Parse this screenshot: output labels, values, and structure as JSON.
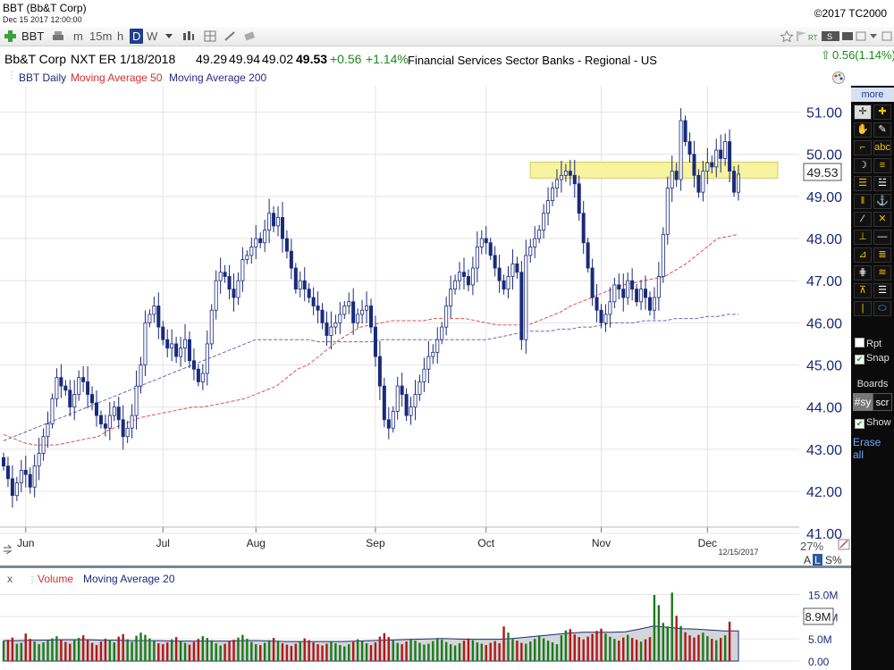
{
  "window": {
    "title": "BBT (Bb&T Corp)",
    "date": "Dec 15 2017 12:00:00",
    "copyright": "©2017 TC2000"
  },
  "toolbar": {
    "symbol": "BBT",
    "periods": [
      "m",
      "15m",
      "h",
      "D",
      "W"
    ],
    "selected_period": "D",
    "right_change": "0.56(1.14%)"
  },
  "quote": {
    "name": "Bb&T Corp",
    "earnings": "NXT ER 1/18/2018",
    "open": "49.29",
    "high": "49.94",
    "low": "49.02",
    "last": "49.53",
    "change": "+0.56",
    "change_pct": "+1.14%",
    "sector": "Financial Services Sector  Banks - Regional - US"
  },
  "price_legend": {
    "main": "BBT Daily",
    "ma50": "Moving Average 50",
    "ma200": "Moving Average 200"
  },
  "volume_legend": {
    "close": "x",
    "main": "Volume",
    "ma20": "Moving Average 20"
  },
  "colors": {
    "up_candle": "#ffffff",
    "down_candle": "#1a2a7a",
    "ma50": "#e05050",
    "ma200": "#6a6ab4",
    "volume_up": "#1a7a1a",
    "volume_down": "#b01818",
    "highlight": "#f7f4a0",
    "axis_text": "#1a2a7a"
  },
  "chart_data": [
    {
      "type": "candlestick",
      "title": "BBT Daily",
      "x_ticks": [
        "Jun",
        "Jul",
        "Aug",
        "Sep",
        "Oct",
        "Nov",
        "Dec"
      ],
      "y_ticks": [
        "41.00",
        "42.00",
        "43.00",
        "44.00",
        "45.00",
        "46.00",
        "47.00",
        "48.00",
        "49.00",
        "50.00",
        "51.00"
      ],
      "ylim": [
        40.6,
        51.5
      ],
      "last_price_label": "49.53",
      "date_label": "12/15/2017",
      "pct_label": "27%",
      "scale_options": [
        "A",
        "L",
        "S%"
      ],
      "selected_scale": "L",
      "highlight_zone": [
        49.5,
        49.75
      ],
      "close": [
        42.6,
        42.3,
        41.9,
        42.2,
        42.5,
        42.4,
        42.1,
        42.6,
        42.9,
        43.3,
        43.6,
        44.2,
        44.7,
        44.5,
        44.4,
        44.0,
        44.3,
        44.7,
        44.6,
        44.3,
        44.1,
        43.8,
        43.6,
        43.5,
        43.8,
        44.0,
        43.7,
        43.3,
        43.5,
        43.8,
        44.5,
        45.0,
        46.0,
        46.2,
        46.4,
        45.9,
        45.6,
        45.4,
        45.5,
        45.2,
        45.4,
        45.6,
        45.1,
        44.9,
        44.6,
        44.8,
        45.5,
        46.3,
        47.0,
        47.2,
        47.1,
        46.8,
        46.6,
        47.0,
        47.5,
        47.6,
        47.8,
        48.0,
        47.9,
        48.2,
        48.6,
        48.3,
        48.5,
        48.0,
        47.7,
        47.3,
        46.8,
        47.0,
        46.8,
        46.6,
        46.4,
        46.3,
        46.0,
        45.7,
        45.9,
        46.0,
        46.2,
        46.4,
        46.5,
        46.0,
        46.2,
        46.3,
        46.4,
        45.9,
        45.2,
        44.5,
        43.7,
        43.5,
        43.9,
        44.5,
        44.3,
        43.8,
        44.0,
        44.3,
        44.6,
        44.9,
        45.2,
        45.3,
        45.6,
        45.9,
        46.4,
        46.8,
        47.0,
        47.2,
        47.1,
        46.9,
        47.3,
        47.8,
        48.0,
        47.9,
        47.6,
        47.3,
        47.0,
        46.8,
        47.1,
        47.4,
        47.2,
        45.6,
        47.6,
        47.8,
        48.0,
        48.2,
        48.6,
        48.9,
        49.2,
        49.4,
        49.5,
        49.6,
        49.5,
        49.3,
        48.6,
        47.9,
        47.3,
        46.6,
        46.3,
        46.0,
        46.2,
        46.5,
        46.9,
        46.8,
        46.6,
        47.0,
        46.8,
        46.5,
        46.8,
        46.6,
        46.3,
        46.6,
        47.1,
        48.1,
        49.2,
        49.6,
        49.4,
        50.8,
        50.3,
        50.0,
        49.5,
        49.1,
        49.6,
        49.8,
        49.7,
        50.1,
        49.9,
        50.3,
        49.6,
        49.1,
        49.53
      ],
      "ma50": [
        43.35,
        43.25,
        43.15,
        43.1,
        43.1,
        43.1,
        43.15,
        43.2,
        43.25,
        43.3,
        43.45,
        43.55,
        43.65,
        43.75,
        43.8,
        43.85,
        43.9,
        43.95,
        44.0,
        44.0,
        44.05,
        44.1,
        44.15,
        44.2,
        44.3,
        44.4,
        44.5,
        44.7,
        44.9,
        45.0,
        45.2,
        45.4,
        45.6,
        45.75,
        45.9,
        45.95,
        46.0,
        46.05,
        46.05,
        46.05,
        46.05,
        46.1,
        46.1,
        46.1,
        46.1,
        46.05,
        46.0,
        45.95,
        45.95,
        45.95,
        45.95,
        46.05,
        46.15,
        46.25,
        46.4,
        46.5,
        46.6,
        46.7,
        46.8,
        46.9,
        46.95,
        47.0,
        47.05,
        47.1,
        47.25,
        47.4,
        47.6,
        47.8,
        48.0,
        48.05,
        48.1
      ],
      "ma200": [
        43.2,
        43.3,
        43.4,
        43.5,
        43.6,
        43.7,
        43.8,
        43.9,
        44.0,
        44.1,
        44.2,
        44.3,
        44.4,
        44.5,
        44.6,
        44.7,
        44.8,
        44.9,
        45.0,
        45.1,
        45.2,
        45.3,
        45.4,
        45.5,
        45.6,
        45.6,
        45.6,
        45.6,
        45.6,
        45.6,
        45.55,
        45.55,
        45.55,
        45.55,
        45.55,
        45.55,
        45.6,
        45.6,
        45.6,
        45.6,
        45.6,
        45.6,
        45.6,
        45.6,
        45.6,
        45.6,
        45.6,
        45.65,
        45.7,
        45.75,
        45.8,
        45.8,
        45.8,
        45.85,
        45.85,
        45.9,
        45.9,
        45.95,
        46.0,
        46.0,
        46.0,
        46.05,
        46.05,
        46.05,
        46.1,
        46.1,
        46.1,
        46.15,
        46.15,
        46.2,
        46.2
      ]
    },
    {
      "type": "bar",
      "title": "Volume",
      "y_ticks": [
        "0.00",
        "5.0M",
        "10.0M",
        "15.0M"
      ],
      "ylim": [
        0,
        16.5
      ],
      "last_volume_label": "8.9M",
      "volume_millions": [
        4.5,
        4.8,
        5.3,
        3.9,
        4.1,
        6.2,
        5.0,
        4.4,
        3.8,
        4.2,
        4.6,
        5.1,
        5.6,
        4.8,
        4.3,
        3.9,
        4.7,
        5.2,
        5.8,
        4.9,
        4.1,
        3.6,
        4.4,
        5.0,
        4.8,
        4.2,
        5.5,
        6.1,
        4.9,
        4.3,
        5.7,
        6.4,
        5.9,
        5.1,
        4.5,
        4.0,
        3.8,
        4.2,
        4.9,
        5.4,
        4.6,
        4.1,
        3.7,
        4.3,
        5.0,
        5.6,
        5.2,
        4.7,
        4.0,
        3.5,
        3.9,
        4.4,
        4.8,
        5.3,
        5.9,
        5.0,
        4.3,
        3.8,
        3.6,
        4.1,
        4.7,
        5.2,
        4.6,
        4.0,
        3.7,
        3.4,
        3.9,
        4.5,
        5.1,
        4.7,
        4.2,
        3.8,
        3.5,
        3.9,
        4.4,
        4.0,
        3.6,
        3.3,
        3.8,
        4.3,
        4.9,
        4.5,
        4.0,
        3.6,
        4.2,
        5.5,
        6.3,
        5.4,
        4.6,
        4.1,
        3.8,
        4.4,
        5.0,
        4.6,
        4.1,
        3.7,
        3.9,
        4.5,
        5.2,
        4.8,
        4.3,
        3.8,
        3.5,
        4.0,
        4.6,
        5.1,
        4.7,
        4.2,
        3.9,
        3.6,
        4.1,
        4.5,
        4.0,
        7.8,
        6.4,
        5.2,
        4.6,
        4.1,
        3.9,
        4.4,
        5.0,
        5.6,
        5.1,
        4.6,
        4.2,
        3.8,
        5.8,
        6.9,
        7.2,
        6.0,
        5.4,
        4.9,
        5.5,
        6.1,
        6.8,
        7.3,
        6.2,
        5.5,
        5.0,
        4.6,
        5.3,
        5.9,
        5.2,
        4.8,
        4.4,
        4.9,
        5.4,
        14.9,
        12.6,
        8.6,
        7.8,
        15.4,
        10.2,
        7.9,
        6.5,
        5.8,
        5.3,
        5.9,
        6.4,
        5.6,
        5.0,
        4.7,
        5.2,
        5.8,
        8.9
      ],
      "ma20": [
        4.6,
        4.6,
        4.7,
        4.7,
        4.8,
        4.8,
        4.8,
        4.7,
        4.7,
        4.6,
        4.6,
        4.6,
        4.5,
        4.5,
        4.5,
        4.5,
        4.5,
        4.6,
        4.6,
        4.5,
        4.4,
        4.4,
        4.4,
        4.4,
        4.4,
        4.5,
        4.6,
        4.7,
        4.8,
        4.9,
        5.0,
        5.1,
        5.0,
        4.9,
        4.9,
        4.9,
        5.1,
        5.4,
        5.7,
        6.0,
        6.3,
        6.5,
        6.5,
        6.5,
        6.6,
        7.2,
        7.9,
        7.6,
        7.3,
        7.2,
        7.0,
        6.8,
        6.8
      ]
    }
  ],
  "sidebar": {
    "more": "more",
    "rpt": "Rpt",
    "snap": "Snap",
    "boards": "Boards",
    "board_sy": "#sy",
    "board_scr": "scr",
    "show": "Show",
    "erase_all": "Erase all"
  }
}
